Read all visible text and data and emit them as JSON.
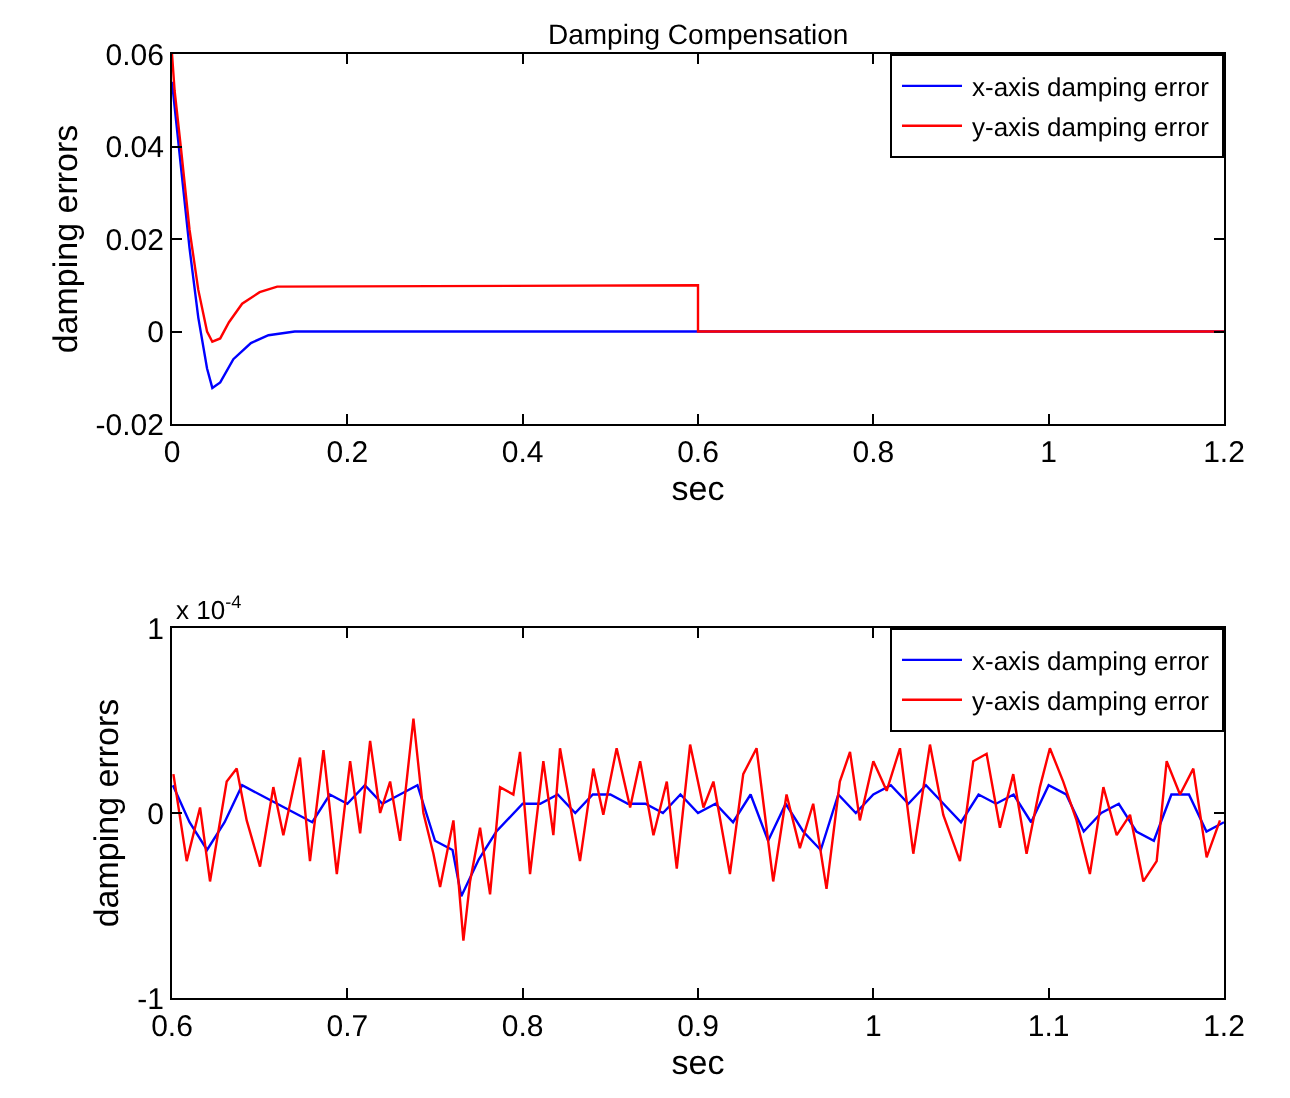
{
  "chart_data": [
    {
      "type": "line",
      "title": "Damping Compensation",
      "xlabel": "sec",
      "ylabel": "damping errors",
      "xlim": [
        0,
        1.2
      ],
      "xticks": [
        0,
        0.2,
        0.4,
        0.6,
        0.8,
        1,
        1.2
      ],
      "ylim": [
        -0.02,
        0.06
      ],
      "yticks": [
        -0.02,
        0,
        0.02,
        0.04,
        0.06
      ],
      "legend": "top right",
      "series": [
        {
          "name": "x-axis damping error",
          "color": "#0000ff",
          "x": [
            0,
            0.005,
            0.01,
            0.02,
            0.03,
            0.04,
            0.046,
            0.055,
            0.07,
            0.09,
            0.11,
            0.14,
            1.2
          ],
          "values": [
            0.054,
            0.045,
            0.036,
            0.018,
            0.003,
            -0.008,
            -0.0122,
            -0.011,
            -0.006,
            -0.0025,
            -0.0008,
            0,
            0
          ]
        },
        {
          "name": "y-axis damping error",
          "color": "#ff0000",
          "x": [
            0,
            0.003,
            0.01,
            0.02,
            0.03,
            0.04,
            0.046,
            0.055,
            0.065,
            0.08,
            0.1,
            0.12,
            0.6,
            0.6,
            1.2
          ],
          "values": [
            0.06,
            0.052,
            0.04,
            0.022,
            0.009,
            0,
            -0.0022,
            -0.0015,
            0.002,
            0.006,
            0.0085,
            0.0097,
            0.01,
            0,
            0
          ]
        }
      ]
    },
    {
      "type": "line",
      "xlabel": "sec",
      "ylabel": "damping errors",
      "xlim": [
        0.6,
        1.2
      ],
      "xticks": [
        0.6,
        0.7,
        0.8,
        0.9,
        1,
        1.1,
        1.2
      ],
      "ylim": [
        -1,
        1
      ],
      "yticks": [
        -1,
        0,
        1
      ],
      "legend": "top right",
      "annotations": [
        "x 10$^{-4}$"
      ],
      "series": [
        {
          "name": "x-axis damping error",
          "color": "#0000ff",
          "x": [
            0.6005,
            0.61,
            0.62,
            0.63,
            0.64,
            0.65,
            0.66,
            0.67,
            0.68,
            0.69,
            0.7,
            0.71,
            0.72,
            0.73,
            0.74,
            0.75,
            0.76,
            0.765,
            0.775,
            0.785,
            0.8,
            0.81,
            0.82,
            0.83,
            0.84,
            0.85,
            0.86,
            0.87,
            0.88,
            0.89,
            0.9,
            0.91,
            0.92,
            0.93,
            0.94,
            0.95,
            0.96,
            0.97,
            0.98,
            0.99,
            1.0,
            1.01,
            1.02,
            1.03,
            1.04,
            1.05,
            1.06,
            1.07,
            1.08,
            1.09,
            1.1,
            1.11,
            1.12,
            1.13,
            1.14,
            1.15,
            1.16,
            1.17,
            1.18,
            1.19,
            1.2
          ],
          "values": [
            0.15,
            -0.05,
            -0.2,
            -0.05,
            0.15,
            0.1,
            0.05,
            0,
            -0.05,
            0.1,
            0.05,
            0.15,
            0.05,
            0.1,
            0.15,
            -0.15,
            -0.2,
            -0.45,
            -0.25,
            -0.1,
            0.05,
            0.05,
            0.1,
            0,
            0.1,
            0.1,
            0.05,
            0.05,
            0,
            0.1,
            0,
            0.05,
            -0.05,
            0.1,
            -0.15,
            0.05,
            -0.1,
            -0.2,
            0.1,
            0,
            0.1,
            0.15,
            0.05,
            0.15,
            0.05,
            -0.05,
            0.1,
            0.05,
            0.1,
            -0.05,
            0.15,
            0.1,
            -0.1,
            0,
            0.05,
            -0.1,
            -0.15,
            0.1,
            0.1,
            -0.1,
            -0.05
          ]
        },
        {
          "name": "y-axis damping error",
          "color": "#ff0000",
          "x": [
            0.6008,
            0.6084,
            0.616,
            0.6217,
            0.6312,
            0.6369,
            0.6426,
            0.6502,
            0.6578,
            0.6635,
            0.673,
            0.6787,
            0.6864,
            0.694,
            0.7016,
            0.7073,
            0.713,
            0.7187,
            0.7244,
            0.7301,
            0.7377,
            0.7434,
            0.7491,
            0.7529,
            0.7605,
            0.7662,
            0.77,
            0.7757,
            0.7814,
            0.7871,
            0.7947,
            0.7985,
            0.8042,
            0.8118,
            0.8175,
            0.8213,
            0.8327,
            0.8403,
            0.846,
            0.8536,
            0.8613,
            0.867,
            0.8746,
            0.8822,
            0.8879,
            0.8955,
            0.9031,
            0.9088,
            0.9182,
            0.9258,
            0.9334,
            0.9429,
            0.9505,
            0.9581,
            0.9657,
            0.9733,
            0.9809,
            0.9867,
            0.9923,
            1.0,
            1.0076,
            1.0152,
            1.0228,
            1.0323,
            1.0399,
            1.0494,
            1.057,
            1.0646,
            1.0722,
            1.0798,
            1.0874,
            1.095,
            1.1007,
            1.1083,
            1.1159,
            1.1235,
            1.1312,
            1.1388,
            1.1464,
            1.154,
            1.1616,
            1.1673,
            1.1749,
            1.1825,
            1.1901,
            1.1977
          ],
          "values": [
            0.21,
            -0.26,
            0.03,
            -0.37,
            0.17,
            0.24,
            -0.04,
            -0.29,
            0.14,
            -0.12,
            0.3,
            -0.26,
            0.34,
            -0.33,
            0.28,
            -0.11,
            0.39,
            0,
            0.17,
            -0.15,
            0.51,
            0,
            -0.22,
            -0.4,
            -0.04,
            -0.69,
            -0.37,
            -0.08,
            -0.44,
            0.14,
            0.1,
            0.33,
            -0.33,
            0.28,
            -0.12,
            0.35,
            -0.26,
            0.24,
            -0.01,
            0.35,
            0.03,
            0.28,
            -0.12,
            0.17,
            -0.3,
            0.37,
            0.03,
            0.17,
            -0.33,
            0.21,
            0.35,
            -0.37,
            0.1,
            -0.19,
            0.05,
            -0.41,
            0.17,
            0.33,
            -0.04,
            0.28,
            0.12,
            0.35,
            -0.22,
            0.37,
            -0.01,
            -0.26,
            0.28,
            0.32,
            -0.08,
            0.21,
            -0.22,
            0.14,
            0.35,
            0.17,
            -0.04,
            -0.33,
            0.14,
            -0.12,
            -0.01,
            -0.37,
            -0.26,
            0.28,
            0.1,
            0.24,
            -0.24,
            -0.04
          ]
        }
      ]
    }
  ]
}
